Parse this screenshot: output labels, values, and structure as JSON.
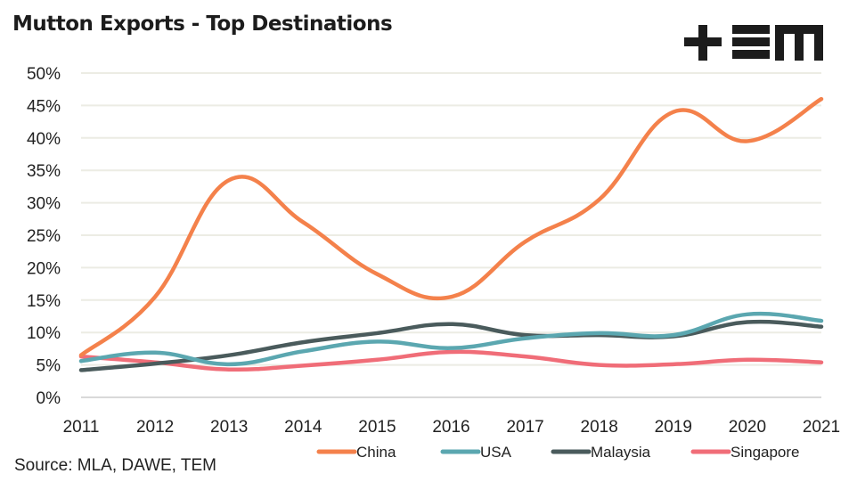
{
  "title": "Mutton Exports - Top Destinations",
  "logo": {
    "name": "TEM logo",
    "icon": "tem-logo-icon"
  },
  "source": "Source: MLA, DAWE, TEM",
  "chart_data": {
    "type": "line",
    "title": "Mutton Exports - Top Destinations",
    "xlabel": "",
    "ylabel": "",
    "x": [
      "2011",
      "2012",
      "2013",
      "2014",
      "2015",
      "2016",
      "2017",
      "2018",
      "2019",
      "2020",
      "2021"
    ],
    "ylim": [
      0,
      50
    ],
    "yticks": [
      0,
      5,
      10,
      15,
      20,
      25,
      30,
      35,
      40,
      45,
      50
    ],
    "ytick_labels": [
      "0%",
      "5%",
      "10%",
      "15%",
      "20%",
      "25%",
      "30%",
      "35%",
      "40%",
      "45%",
      "50%"
    ],
    "grid": true,
    "legend_position": "bottom",
    "smooth": true,
    "series": [
      {
        "name": "China",
        "color": "#F4814B",
        "values": [
          6.5,
          15.5,
          33.5,
          27.0,
          19.0,
          15.5,
          24.0,
          30.5,
          44.0,
          39.5,
          46.0
        ]
      },
      {
        "name": "USA",
        "color": "#5BA7B0",
        "values": [
          5.6,
          6.9,
          5.1,
          7.1,
          8.6,
          7.6,
          9.1,
          9.9,
          9.6,
          12.8,
          11.8
        ]
      },
      {
        "name": "Malaysia",
        "color": "#4A5B5C",
        "values": [
          4.2,
          5.2,
          6.5,
          8.5,
          9.9,
          11.3,
          9.6,
          9.6,
          9.4,
          11.6,
          10.9
        ]
      },
      {
        "name": "Singapore",
        "color": "#F06D78",
        "values": [
          6.3,
          5.4,
          4.3,
          4.9,
          5.8,
          7.0,
          6.3,
          5.0,
          5.1,
          5.8,
          5.4
        ]
      }
    ]
  }
}
